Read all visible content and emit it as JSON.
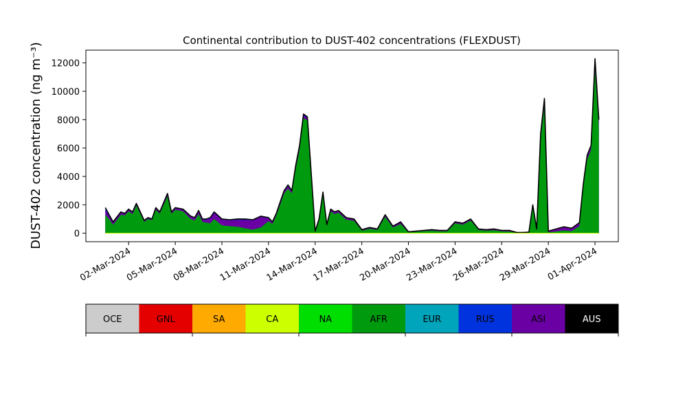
{
  "chart_data": {
    "type": "area",
    "title": "Continental contribution to DUST-402 concentrations (FLEXDUST)",
    "ylabel": "DUST-402 concentration (ng m⁻³)",
    "xlabel": "",
    "stacked": true,
    "ylim": [
      -600,
      12900
    ],
    "yticks": [
      0,
      2000,
      4000,
      6000,
      8000,
      10000,
      12000
    ],
    "xlim": [
      "2024-02-28T06:00",
      "2024-04-02T12:00"
    ],
    "xticks": [
      "02-Mar-2024",
      "05-Mar-2024",
      "08-Mar-2024",
      "11-Mar-2024",
      "14-Mar-2024",
      "17-Mar-2024",
      "20-Mar-2024",
      "23-Mar-2024",
      "26-Mar-2024",
      "29-Mar-2024",
      "01-Apr-2024"
    ],
    "xtick_dates": [
      "2024-03-02",
      "2024-03-05",
      "2024-03-08",
      "2024-03-11",
      "2024-03-14",
      "2024-03-17",
      "2024-03-20",
      "2024-03-23",
      "2024-03-26",
      "2024-03-29",
      "2024-04-01"
    ],
    "grid": false,
    "x": [
      "2024-02-29T12:00",
      "2024-02-29T18:00",
      "2024-03-01T00:00",
      "2024-03-01T12:00",
      "2024-03-01T18:00",
      "2024-03-02T00:00",
      "2024-03-02T06:00",
      "2024-03-02T12:00",
      "2024-03-03T00:00",
      "2024-03-03T06:00",
      "2024-03-03T12:00",
      "2024-03-03T18:00",
      "2024-03-04T00:00",
      "2024-03-04T12:00",
      "2024-03-04T18:00",
      "2024-03-05T00:00",
      "2024-03-05T12:00",
      "2024-03-06T00:00",
      "2024-03-06T06:00",
      "2024-03-06T12:00",
      "2024-03-06T18:00",
      "2024-03-07T00:00",
      "2024-03-07T06:00",
      "2024-03-07T12:00",
      "2024-03-08T00:00",
      "2024-03-08T12:00",
      "2024-03-09T00:00",
      "2024-03-09T12:00",
      "2024-03-10T00:00",
      "2024-03-10T12:00",
      "2024-03-11T00:00",
      "2024-03-11T06:00",
      "2024-03-11T12:00",
      "2024-03-11T18:00",
      "2024-03-12T00:00",
      "2024-03-12T06:00",
      "2024-03-12T12:00",
      "2024-03-12T18:00",
      "2024-03-13T00:00",
      "2024-03-13T06:00",
      "2024-03-13T12:00",
      "2024-03-14T00:00",
      "2024-03-14T06:00",
      "2024-03-14T12:00",
      "2024-03-14T18:00",
      "2024-03-15T00:00",
      "2024-03-15T06:00",
      "2024-03-15T12:00",
      "2024-03-16T00:00",
      "2024-03-16T12:00",
      "2024-03-17T00:00",
      "2024-03-17T12:00",
      "2024-03-18T00:00",
      "2024-03-18T12:00",
      "2024-03-19T00:00",
      "2024-03-19T12:00",
      "2024-03-20T00:00",
      "2024-03-21T00:00",
      "2024-03-21T12:00",
      "2024-03-22T00:00",
      "2024-03-22T12:00",
      "2024-03-23T00:00",
      "2024-03-23T12:00",
      "2024-03-24T00:00",
      "2024-03-24T12:00",
      "2024-03-25T00:00",
      "2024-03-25T12:00",
      "2024-03-26T00:00",
      "2024-03-26T12:00",
      "2024-03-27T00:00",
      "2024-03-27T06:00",
      "2024-03-27T12:00",
      "2024-03-27T18:00",
      "2024-03-28T00:00",
      "2024-03-28T06:00",
      "2024-03-28T12:00",
      "2024-03-28T18:00",
      "2024-03-29T00:00",
      "2024-03-29T12:00",
      "2024-03-30T00:00",
      "2024-03-30T12:00",
      "2024-03-31T00:00",
      "2024-03-31T06:00",
      "2024-03-31T12:00",
      "2024-03-31T18:00",
      "2024-04-01T00:00",
      "2024-04-01T06:00"
    ],
    "total": [
      1800,
      1300,
      800,
      1500,
      1400,
      1700,
      1500,
      2100,
      900,
      1100,
      1000,
      1800,
      1500,
      2800,
      1500,
      1800,
      1700,
      1200,
      1100,
      1600,
      1000,
      1000,
      1100,
      1500,
      1000,
      950,
      1000,
      1000,
      950,
      1200,
      1100,
      800,
      1400,
      2200,
      3000,
      3400,
      3000,
      4800,
      6200,
      8400,
      8200,
      150,
      1000,
      2900,
      600,
      1700,
      1500,
      1600,
      1100,
      1000,
      250,
      400,
      300,
      1300,
      500,
      800,
      100,
      200,
      250,
      200,
      200,
      800,
      700,
      1000,
      300,
      250,
      300,
      200,
      200,
      50,
      50,
      60,
      80,
      2000,
      300,
      7000,
      9500,
      150,
      300,
      450,
      350,
      750,
      3500,
      5500,
      6200,
      12300,
      8000
    ],
    "series": [
      {
        "name": "AFR",
        "values": [
          1300,
          1000,
          600,
          1300,
          1250,
          1550,
          1350,
          1950,
          800,
          1000,
          920,
          1650,
          1380,
          2600,
          1380,
          1650,
          1550,
          1000,
          900,
          1350,
          800,
          750,
          700,
          1000,
          550,
          500,
          450,
          350,
          250,
          400,
          850,
          650,
          1250,
          2000,
          2800,
          3150,
          2800,
          4550,
          5900,
          8100,
          7950,
          100,
          900,
          2750,
          520,
          1550,
          1350,
          1450,
          950,
          880,
          190,
          320,
          230,
          1150,
          400,
          650,
          60,
          150,
          180,
          140,
          140,
          700,
          600,
          900,
          230,
          180,
          220,
          130,
          120,
          20,
          20,
          25,
          40,
          1800,
          200,
          6600,
          9000,
          60,
          120,
          200,
          150,
          500,
          3250,
          5200,
          5900,
          11500,
          7400
        ]
      },
      {
        "name": "ASI",
        "values": [
          350,
          200,
          150,
          150,
          110,
          110,
          120,
          110,
          80,
          80,
          70,
          120,
          100,
          150,
          100,
          120,
          110,
          150,
          150,
          200,
          150,
          200,
          330,
          420,
          400,
          400,
          480,
          580,
          650,
          750,
          200,
          120,
          110,
          150,
          150,
          180,
          150,
          180,
          220,
          220,
          180,
          40,
          80,
          120,
          60,
          120,
          120,
          120,
          120,
          100,
          50,
          70,
          60,
          120,
          80,
          120,
          30,
          40,
          55,
          50,
          50,
          80,
          80,
          80,
          60,
          60,
          70,
          60,
          70,
          25,
          25,
          30,
          35,
          150,
          90,
          300,
          380,
          80,
          170,
          230,
          190,
          230,
          200,
          230,
          230,
          650,
          480
        ]
      },
      {
        "name": "RUS",
        "values": [
          150,
          100,
          50,
          50,
          40,
          40,
          30,
          40,
          20,
          20,
          10,
          30,
          20,
          50,
          20,
          30,
          40,
          50,
          50,
          50,
          50,
          50,
          70,
          80,
          50,
          50,
          70,
          70,
          50,
          50,
          50,
          30,
          40,
          50,
          50,
          70,
          50,
          70,
          80,
          80,
          70,
          10,
          20,
          30,
          20,
          30,
          30,
          30,
          30,
          20,
          10,
          10,
          10,
          30,
          20,
          30,
          10,
          10,
          15,
          10,
          10,
          20,
          20,
          20,
          10,
          10,
          10,
          10,
          10,
          5,
          5,
          5,
          5,
          50,
          10,
          100,
          120,
          10,
          10,
          20,
          10,
          20,
          50,
          70,
          70,
          150,
          120
        ]
      }
    ],
    "layer_colors": {
      "AFR": "#009a0e",
      "ASI": "#6a00a4",
      "RUS": "#0033dd",
      "outline": "#000000"
    },
    "legend": [
      {
        "name": "OCE",
        "color": "#cccccc",
        "text_color": "#000000"
      },
      {
        "name": "GNL",
        "color": "#e50000",
        "text_color": "#000000"
      },
      {
        "name": "SA",
        "color": "#ffaa00",
        "text_color": "#000000"
      },
      {
        "name": "CA",
        "color": "#ccff00",
        "text_color": "#000000"
      },
      {
        "name": "NA",
        "color": "#00dd00",
        "text_color": "#000000"
      },
      {
        "name": "AFR",
        "color": "#009a0e",
        "text_color": "#000000"
      },
      {
        "name": "EUR",
        "color": "#00a4bb",
        "text_color": "#000000"
      },
      {
        "name": "RUS",
        "color": "#0033dd",
        "text_color": "#000000"
      },
      {
        "name": "ASI",
        "color": "#6a00a4",
        "text_color": "#000000"
      },
      {
        "name": "AUS",
        "color": "#000000",
        "text_color": "#ffffff"
      }
    ],
    "legend_placement": "bottom colorbar"
  }
}
